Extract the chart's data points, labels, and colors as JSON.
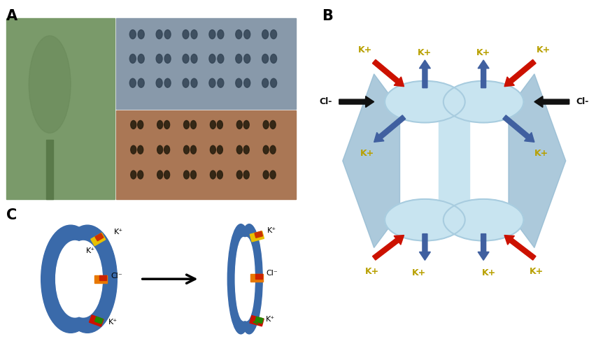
{
  "bg_color": "#ffffff",
  "label_A": "A",
  "label_B": "B",
  "label_C": "C",
  "guard_light": "#c8e4f0",
  "guard_mid": "#a8ccdf",
  "guard_dark": "#88b0cc",
  "pentagon_color": "#90b8d0",
  "arrow_blue": "#4060a0",
  "arrow_red": "#cc1100",
  "arrow_black": "#111111",
  "kplus_color": "#b8a000",
  "cell_blue": "#3a6aaa",
  "photo_green": "#7a9a6a",
  "photo_gray": "#8899aa",
  "photo_brown": "#aa7755",
  "spot_dark_top": "#334455",
  "spot_dark_bot": "#2a2010"
}
